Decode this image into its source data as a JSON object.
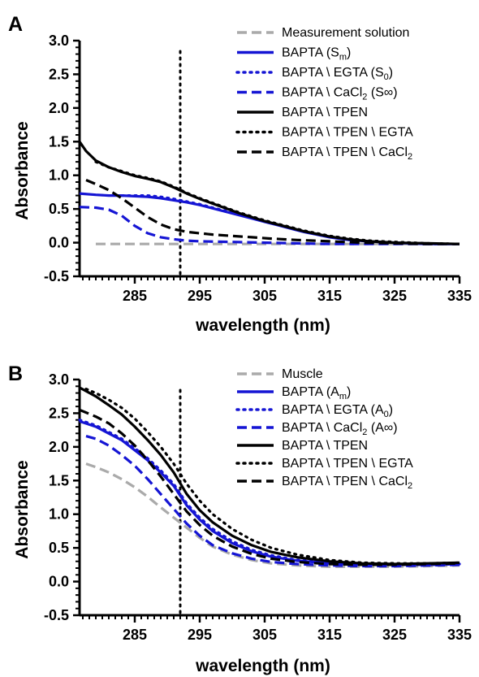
{
  "chart_data": [
    {
      "panel": "A",
      "type": "line",
      "xlabel": "wavelength (nm)",
      "ylabel": "Absorbance",
      "xlim": [
        276.5,
        335
      ],
      "ylim": [
        -0.5,
        3.0
      ],
      "xticks": [
        285,
        295,
        305,
        315,
        325,
        335
      ],
      "yticks": [
        -0.5,
        0.0,
        0.5,
        1.0,
        1.5,
        2.0,
        2.5,
        3.0
      ],
      "vline": {
        "x": 292,
        "style": "dotted"
      },
      "legend_position": "top-right",
      "series": [
        {
          "name": "Measurement solution",
          "label": {
            "base": "Measurement solution",
            "sub": ""
          },
          "color": "#aaaaaa",
          "dash": "dashed",
          "x": [
            279,
            283,
            287,
            291,
            295,
            300,
            305,
            310,
            315,
            320,
            325,
            330,
            335
          ],
          "y": [
            -0.02,
            -0.02,
            -0.02,
            -0.02,
            -0.02,
            -0.02,
            -0.02,
            -0.02,
            -0.02,
            -0.02,
            -0.02,
            -0.02,
            -0.02
          ]
        },
        {
          "name": "BAPTA (Sm)",
          "label": {
            "base": "BAPTA (S",
            "sub": "m",
            "tail": ")"
          },
          "color": "#1515d4",
          "dash": "solid",
          "x": [
            276.5,
            279,
            281,
            283,
            285,
            287,
            289,
            291,
            293,
            295,
            297,
            299,
            301,
            303,
            305,
            307,
            309,
            311,
            313,
            315,
            318,
            321,
            325,
            330,
            335
          ],
          "y": [
            0.73,
            0.71,
            0.7,
            0.7,
            0.69,
            0.68,
            0.66,
            0.63,
            0.6,
            0.56,
            0.51,
            0.46,
            0.41,
            0.36,
            0.31,
            0.26,
            0.21,
            0.16,
            0.12,
            0.08,
            0.04,
            0.02,
            0.0,
            -0.02,
            -0.02
          ]
        },
        {
          "name": "BAPTA \\ EGTA (S0)",
          "label": {
            "base": "BAPTA \\ EGTA (S",
            "sub": "0",
            "tail": ")"
          },
          "color": "#1515d4",
          "dash": "dotted",
          "x": [
            283,
            285,
            287,
            289,
            291,
            293,
            295,
            297,
            299,
            301,
            303,
            305,
            307,
            309,
            311,
            313,
            315,
            318,
            321,
            325,
            330,
            335
          ],
          "y": [
            0.7,
            0.7,
            0.7,
            0.68,
            0.65,
            0.61,
            0.57,
            0.52,
            0.47,
            0.42,
            0.37,
            0.32,
            0.27,
            0.22,
            0.17,
            0.13,
            0.09,
            0.05,
            0.02,
            0.0,
            -0.02,
            -0.02
          ]
        },
        {
          "name": "BAPTA \\ CaCl2 (S∞)",
          "label": {
            "base": "BAPTA \\ CaCl",
            "sub": "2",
            "tail": " (S∞)"
          },
          "color": "#1515d4",
          "dash": "dashed",
          "x": [
            276.5,
            279,
            281,
            283,
            285,
            287,
            289,
            291,
            293,
            295,
            300,
            305,
            310,
            315,
            320,
            325,
            330,
            335
          ],
          "y": [
            0.53,
            0.52,
            0.49,
            0.4,
            0.25,
            0.14,
            0.08,
            0.05,
            0.03,
            0.02,
            0.01,
            0.0,
            -0.01,
            -0.02,
            -0.02,
            -0.02,
            -0.02,
            -0.02
          ]
        },
        {
          "name": "BAPTA \\ TPEN",
          "label": {
            "base": "BAPTA \\ TPEN",
            "sub": ""
          },
          "color": "#000000",
          "dash": "solid",
          "x": [
            276.5,
            277.5,
            279,
            281,
            283,
            285,
            287,
            289,
            291,
            293,
            295,
            297,
            299,
            301,
            303,
            305,
            307,
            309,
            311,
            313,
            315,
            318,
            321,
            325,
            330,
            335
          ],
          "y": [
            1.5,
            1.36,
            1.22,
            1.12,
            1.05,
            0.99,
            0.95,
            0.9,
            0.82,
            0.73,
            0.65,
            0.58,
            0.51,
            0.44,
            0.38,
            0.32,
            0.27,
            0.22,
            0.17,
            0.13,
            0.09,
            0.05,
            0.02,
            0.0,
            -0.01,
            -0.02
          ]
        },
        {
          "name": "BAPTA \\ TPEN \\ EGTA",
          "label": {
            "base": "BAPTA \\ TPEN \\ EGTA",
            "sub": ""
          },
          "color": "#000000",
          "dash": "dotted",
          "x": [
            279,
            281,
            283,
            285,
            287,
            289,
            291,
            293,
            295,
            297,
            299,
            301,
            303,
            305,
            307,
            309,
            311,
            313,
            315,
            318,
            321,
            325,
            330,
            335
          ],
          "y": [
            1.2,
            1.12,
            1.06,
            1.0,
            0.96,
            0.91,
            0.83,
            0.74,
            0.66,
            0.59,
            0.52,
            0.45,
            0.39,
            0.33,
            0.28,
            0.23,
            0.18,
            0.14,
            0.1,
            0.06,
            0.03,
            0.01,
            -0.01,
            -0.02
          ]
        },
        {
          "name": "BAPTA \\ TPEN \\ CaCl2",
          "label": {
            "base": "BAPTA \\ TPEN \\ CaCl",
            "sub": "2"
          },
          "color": "#000000",
          "dash": "dashed",
          "x": [
            277.5,
            279,
            281,
            283,
            285,
            287,
            289,
            291,
            293,
            295,
            297,
            300,
            303,
            306,
            310,
            315,
            320,
            325,
            330,
            335
          ],
          "y": [
            0.93,
            0.87,
            0.78,
            0.66,
            0.52,
            0.38,
            0.27,
            0.2,
            0.16,
            0.14,
            0.12,
            0.1,
            0.08,
            0.06,
            0.04,
            0.02,
            0.0,
            -0.01,
            -0.02,
            -0.02
          ]
        }
      ]
    },
    {
      "panel": "B",
      "type": "line",
      "xlabel": "wavelength (nm)",
      "ylabel": "Absorbance",
      "xlim": [
        276.5,
        335
      ],
      "ylim": [
        -0.5,
        3.0
      ],
      "xticks": [
        285,
        295,
        305,
        315,
        325,
        335
      ],
      "yticks": [
        -0.5,
        0.0,
        0.5,
        1.0,
        1.5,
        2.0,
        2.5,
        3.0
      ],
      "vline": {
        "x": 292,
        "style": "dotted"
      },
      "legend_position": "top-right",
      "series": [
        {
          "name": "Muscle",
          "label": {
            "base": "Muscle",
            "sub": ""
          },
          "color": "#aaaaaa",
          "dash": "dashed",
          "x": [
            277.5,
            279,
            281,
            283,
            285,
            287,
            289,
            291,
            293,
            295,
            297,
            300,
            303,
            306,
            310,
            315,
            320,
            325,
            330,
            335
          ],
          "y": [
            1.75,
            1.7,
            1.62,
            1.52,
            1.4,
            1.26,
            1.1,
            0.95,
            0.8,
            0.65,
            0.52,
            0.4,
            0.32,
            0.27,
            0.24,
            0.22,
            0.22,
            0.22,
            0.23,
            0.24
          ]
        },
        {
          "name": "BAPTA (Am)",
          "label": {
            "base": "BAPTA (A",
            "sub": "m",
            "tail": ")"
          },
          "color": "#1515d4",
          "dash": "solid",
          "x": [
            276.5,
            279,
            281,
            283,
            285,
            287,
            289,
            291,
            293,
            295,
            297,
            300,
            303,
            306,
            310,
            315,
            320,
            325,
            330,
            335
          ],
          "y": [
            2.38,
            2.3,
            2.2,
            2.1,
            1.95,
            1.8,
            1.62,
            1.42,
            1.13,
            0.92,
            0.75,
            0.57,
            0.45,
            0.37,
            0.31,
            0.27,
            0.25,
            0.25,
            0.25,
            0.26
          ]
        },
        {
          "name": "BAPTA \\ EGTA (A0)",
          "label": {
            "base": "BAPTA \\ EGTA (A",
            "sub": "0",
            "tail": ")"
          },
          "color": "#1515d4",
          "dash": "dotted",
          "x": [
            276.5,
            279,
            281,
            283,
            285,
            287,
            289,
            291,
            293,
            295,
            297,
            300,
            303,
            306,
            310,
            315,
            320,
            325,
            330,
            335
          ],
          "y": [
            2.4,
            2.32,
            2.22,
            2.12,
            1.98,
            1.83,
            1.65,
            1.45,
            1.16,
            0.95,
            0.78,
            0.6,
            0.47,
            0.39,
            0.32,
            0.28,
            0.26,
            0.25,
            0.25,
            0.26
          ]
        },
        {
          "name": "BAPTA \\ CaCl2 (A∞)",
          "label": {
            "base": "BAPTA \\ CaCl",
            "sub": "2",
            "tail": " (A∞)"
          },
          "color": "#1515d4",
          "dash": "dashed",
          "x": [
            277.5,
            279,
            281,
            283,
            285,
            287,
            289,
            291,
            293,
            295,
            297,
            300,
            303,
            306,
            310,
            315,
            320,
            325,
            330,
            335
          ],
          "y": [
            2.16,
            2.12,
            2.02,
            1.88,
            1.72,
            1.52,
            1.3,
            1.08,
            0.86,
            0.68,
            0.54,
            0.42,
            0.34,
            0.29,
            0.26,
            0.24,
            0.23,
            0.23,
            0.24,
            0.25
          ]
        },
        {
          "name": "BAPTA \\ TPEN",
          "label": {
            "base": "BAPTA \\ TPEN",
            "sub": ""
          },
          "color": "#000000",
          "dash": "solid",
          "x": [
            276.5,
            279,
            281,
            283,
            285,
            287,
            289,
            291,
            293,
            295,
            297,
            300,
            303,
            306,
            310,
            315,
            320,
            325,
            330,
            335
          ],
          "y": [
            2.88,
            2.75,
            2.62,
            2.48,
            2.3,
            2.1,
            1.88,
            1.62,
            1.3,
            1.06,
            0.88,
            0.68,
            0.54,
            0.44,
            0.36,
            0.3,
            0.27,
            0.26,
            0.27,
            0.28
          ]
        },
        {
          "name": "BAPTA \\ TPEN \\ EGTA",
          "label": {
            "base": "BAPTA \\ TPEN \\ EGTA",
            "sub": ""
          },
          "color": "#000000",
          "dash": "dotted",
          "x": [
            277.5,
            279,
            281,
            283,
            285,
            287,
            289,
            291,
            293,
            295,
            297,
            300,
            303,
            306,
            310,
            315,
            320,
            325,
            330,
            335
          ],
          "y": [
            2.86,
            2.8,
            2.7,
            2.58,
            2.42,
            2.22,
            2.0,
            1.75,
            1.45,
            1.2,
            1.0,
            0.78,
            0.62,
            0.5,
            0.4,
            0.32,
            0.28,
            0.27,
            0.27,
            0.28
          ]
        },
        {
          "name": "BAPTA \\ TPEN \\ CaCl2",
          "label": {
            "base": "BAPTA \\ TPEN \\ CaCl",
            "sub": "2"
          },
          "color": "#000000",
          "dash": "dashed",
          "x": [
            276.5,
            279,
            281,
            283,
            285,
            287,
            289,
            291,
            293,
            295,
            297,
            300,
            303,
            306,
            310,
            315,
            320,
            325,
            330,
            335
          ],
          "y": [
            2.55,
            2.45,
            2.35,
            2.2,
            2.02,
            1.8,
            1.56,
            1.3,
            1.04,
            0.84,
            0.68,
            0.52,
            0.41,
            0.34,
            0.29,
            0.26,
            0.25,
            0.25,
            0.26,
            0.27
          ]
        }
      ]
    }
  ]
}
